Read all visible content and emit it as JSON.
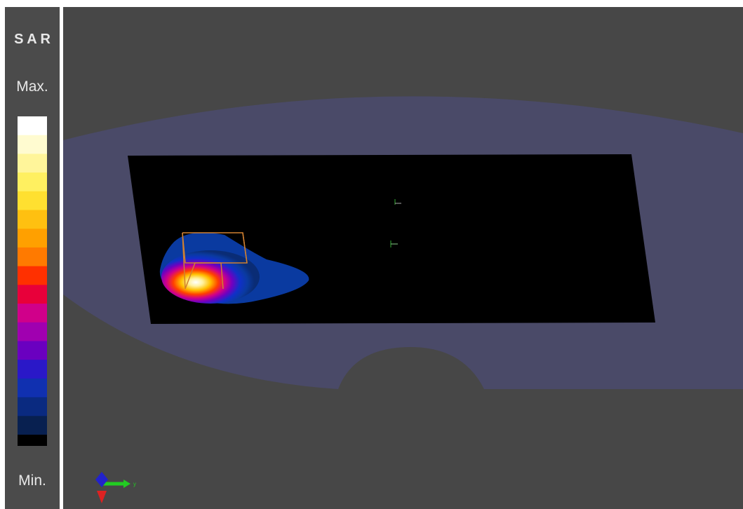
{
  "sidebar": {
    "title": "S A R",
    "max_label": "Max.",
    "min_label": "Min."
  },
  "viewport": {
    "axis_label": "y"
  }
}
